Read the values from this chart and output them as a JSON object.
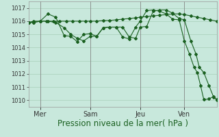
{
  "background_color": "#c8e8dc",
  "grid_color": "#a0c8b0",
  "line_color": "#1a6020",
  "xlabel": "Pression niveau de la mer( hPa )",
  "xlabel_fontsize": 8.5,
  "xlabel_color": "#1a6020",
  "ylim": [
    1009.5,
    1017.5
  ],
  "yticks": [
    1010,
    1011,
    1012,
    1013,
    1014,
    1015,
    1016,
    1017
  ],
  "ytick_fontsize": 6,
  "xtick_labels": [
    "Mer",
    "Sam",
    "Jeu",
    "Ven"
  ],
  "xtick_positions": [
    18,
    95,
    172,
    240
  ],
  "xtick_fontsize": 7,
  "xlim_days": [
    0,
    290
  ],
  "vline_positions": [
    18,
    95,
    172,
    240
  ],
  "series1": {
    "x": [
      0,
      8,
      18,
      28,
      38,
      48,
      58,
      68,
      78,
      88,
      95,
      105,
      115,
      125,
      135,
      145,
      155,
      165,
      172,
      182,
      192,
      202,
      212,
      222,
      232,
      240,
      250,
      260,
      270,
      280,
      290
    ],
    "y": [
      1015.9,
      1016.0,
      1016.0,
      1016.0,
      1016.0,
      1016.0,
      1016.0,
      1016.0,
      1016.0,
      1016.0,
      1016.0,
      1016.0,
      1016.05,
      1016.05,
      1016.1,
      1016.15,
      1016.2,
      1016.25,
      1016.3,
      1016.35,
      1016.4,
      1016.45,
      1016.5,
      1016.55,
      1016.55,
      1016.5,
      1016.4,
      1016.3,
      1016.2,
      1016.1,
      1016.0
    ]
  },
  "series2": {
    "x": [
      0,
      8,
      18,
      30,
      42,
      55,
      65,
      75,
      85,
      95,
      105,
      115,
      125,
      135,
      145,
      155,
      165,
      172,
      182,
      192,
      202,
      212,
      222,
      232,
      240,
      250,
      258,
      263,
      270,
      278,
      285,
      290
    ],
    "y": [
      1015.9,
      1015.9,
      1016.0,
      1016.0,
      1015.9,
      1015.5,
      1015.0,
      1014.7,
      1014.5,
      1014.85,
      1014.85,
      1015.5,
      1015.55,
      1015.55,
      1015.55,
      1014.8,
      1014.7,
      1015.55,
      1015.6,
      1016.75,
      1016.85,
      1016.85,
      1016.6,
      1016.2,
      1016.1,
      1014.5,
      1013.5,
      1012.5,
      1012.1,
      1011.1,
      1010.25,
      1010.05
    ]
  },
  "series3": {
    "x": [
      0,
      8,
      18,
      30,
      42,
      55,
      65,
      75,
      85,
      95,
      105,
      115,
      125,
      135,
      145,
      155,
      165,
      172,
      182,
      192,
      202,
      212,
      222,
      232,
      240,
      248,
      255,
      260,
      265,
      270,
      278,
      285,
      290
    ],
    "y": [
      1015.9,
      1015.9,
      1016.0,
      1016.55,
      1016.3,
      1014.9,
      1014.85,
      1014.45,
      1015.0,
      1015.05,
      1014.85,
      1015.5,
      1015.55,
      1015.55,
      1014.8,
      1014.65,
      1015.55,
      1016.0,
      1016.8,
      1016.85,
      1016.75,
      1016.55,
      1016.15,
      1016.1,
      1014.5,
      1013.5,
      1012.5,
      1012.1,
      1011.1,
      1010.05,
      1010.1,
      1010.3,
      1010.0
    ]
  }
}
